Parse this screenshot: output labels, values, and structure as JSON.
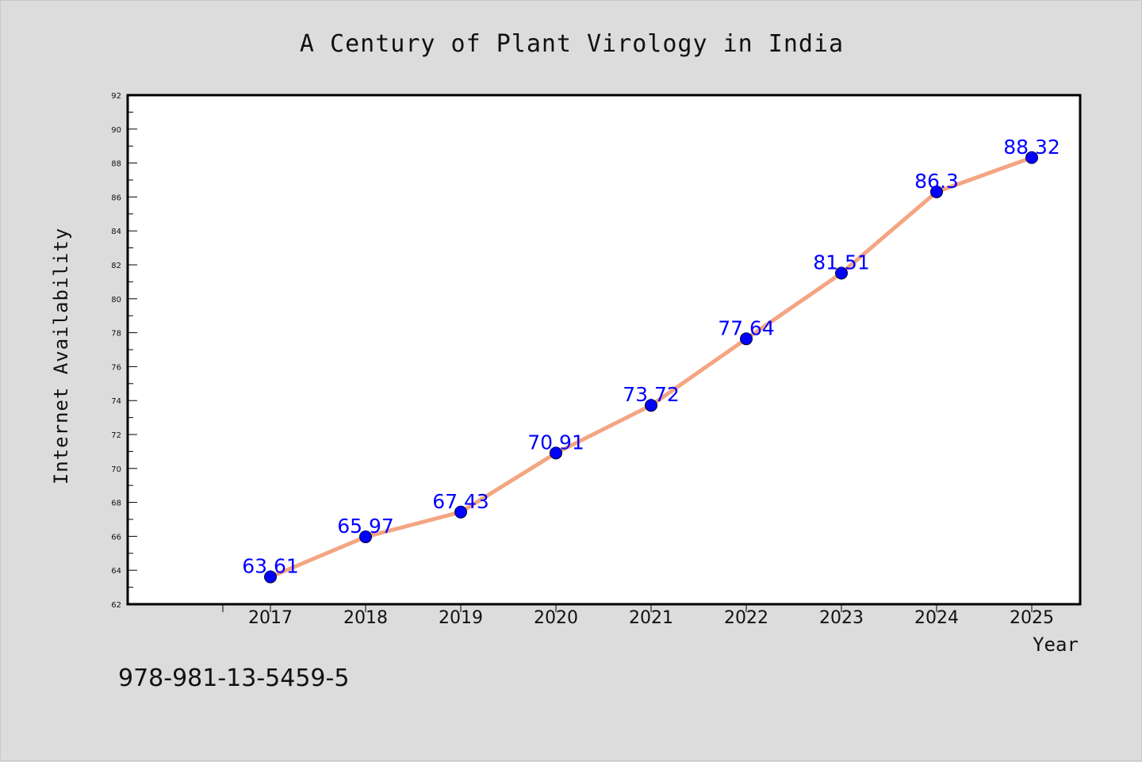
{
  "chart_data": {
    "type": "line",
    "title": "A Century of Plant Virology in India",
    "xlabel": "Year",
    "ylabel": "Internet Availability",
    "categories": [
      "2017",
      "2018",
      "2019",
      "2020",
      "2021",
      "2022",
      "2023",
      "2024",
      "2025"
    ],
    "series": [
      {
        "values": [
          63.61,
          65.97,
          67.43,
          70.91,
          73.72,
          77.64,
          81.51,
          86.3,
          88.32
        ],
        "line_color": "#f4a582",
        "marker_color": "#0000ff"
      }
    ],
    "data_labels": [
      "63.61",
      "65.97",
      "67.43",
      "70.91",
      "73.72",
      "77.64",
      "81.51",
      "86.3",
      "88.32"
    ],
    "ylim": [
      62,
      92
    ],
    "yticks": [
      "62",
      "64",
      "66",
      "68",
      "70",
      "72",
      "74",
      "76",
      "78",
      "80",
      "82",
      "84",
      "86",
      "88",
      "90",
      "92"
    ],
    "grid": false,
    "legend": "none",
    "label_color": "#0000ff"
  },
  "footer": {
    "isbn": "978-981-13-5459-5"
  }
}
